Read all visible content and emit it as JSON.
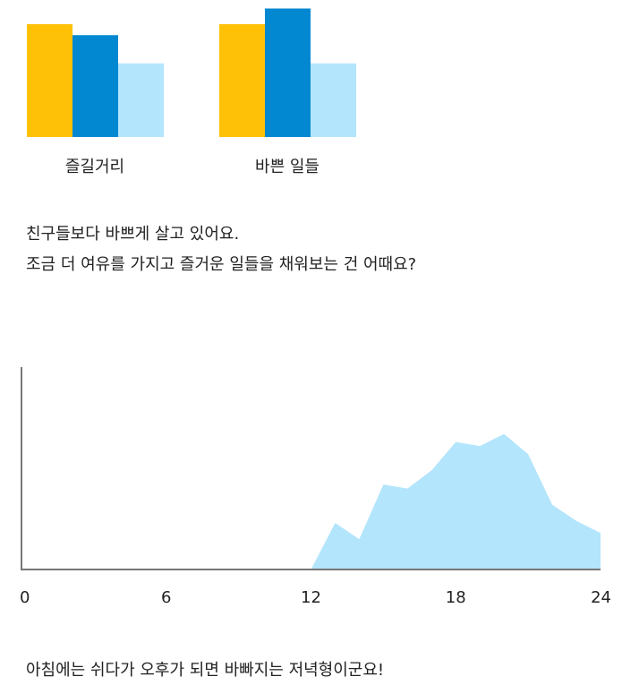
{
  "chart_data": [
    {
      "type": "bar",
      "categories": [
        "즐길거리",
        "바쁜 일들"
      ],
      "series": [
        {
          "values": [
            0.72,
            0.72
          ]
        },
        {
          "values": [
            0.65,
            0.82
          ]
        },
        {
          "values": [
            0.47,
            0.47
          ]
        }
      ],
      "colors": [
        "#FFC107",
        "#0288D1",
        "#B3E5FC"
      ],
      "ylim": [
        0,
        1
      ],
      "xlabel": "",
      "ylabel": "",
      "grid": false
    },
    {
      "type": "area",
      "x": [
        0,
        1,
        2,
        3,
        4,
        5,
        6,
        7,
        8,
        9,
        10,
        11,
        12,
        13,
        14,
        15,
        16,
        17,
        18,
        19,
        20,
        21,
        22,
        23,
        24
      ],
      "values": [
        0,
        0,
        0,
        0,
        0,
        0,
        0,
        0,
        0,
        0,
        0,
        0,
        0,
        0.23,
        0.15,
        0.42,
        0.4,
        0.49,
        0.63,
        0.61,
        0.67,
        0.57,
        0.32,
        0.24,
        0.18
      ],
      "xticks": [
        "0",
        "6",
        "12",
        "18",
        "24"
      ],
      "xlim": [
        0,
        24
      ],
      "ylim": [
        0,
        1
      ],
      "color": "#B3E5FC",
      "grid": false
    }
  ],
  "messages": {
    "line1": "친구들보다 바쁘게 살고 있어요.",
    "line2": "조금 더 여유를 가지고 즐거운 일들을 채워보는 건 어때요?",
    "footer": "아침에는 쉬다가 오후가 되면 바빠지는 저녁형이군요!"
  }
}
